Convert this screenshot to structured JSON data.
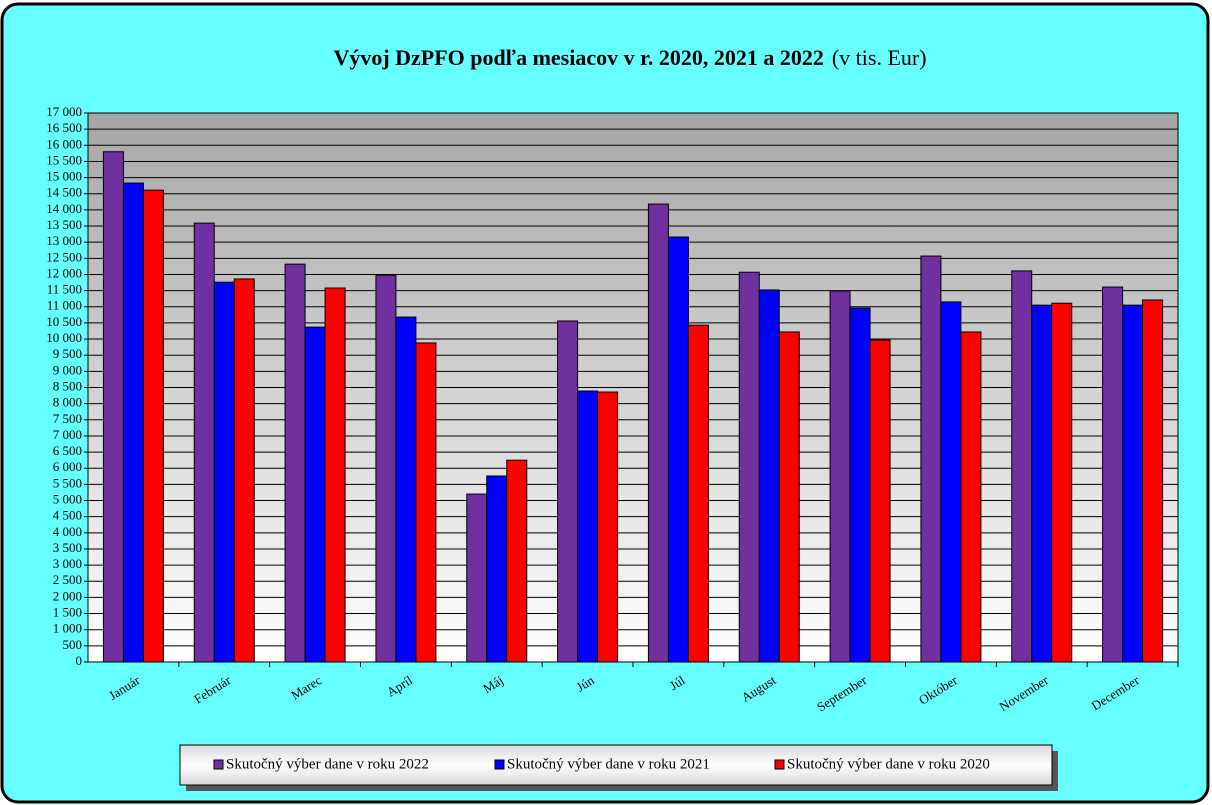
{
  "chart_data": {
    "type": "bar",
    "title": "Vývoj DzPFO podľa mesiacov v r. 2020, 2021 a  2022",
    "subtitle": "(v tis. Eur)",
    "categories": [
      "Január",
      "Február",
      "Marec",
      "Apríl",
      "Máj",
      "Jún",
      "Júl",
      "August",
      "September",
      "Október",
      "November",
      "December"
    ],
    "series": [
      {
        "name": "Skutočný výber dane v roku 2022",
        "color": "#7030a0",
        "values": [
          15800,
          13590,
          12320,
          11980,
          5200,
          10560,
          14180,
          12070,
          11490,
          12570,
          12110,
          11610
        ]
      },
      {
        "name": "Skutočný výber dane v roku 2021",
        "color": "#0000ff",
        "values": [
          14830,
          11760,
          10370,
          10680,
          5760,
          8390,
          13160,
          11520,
          10960,
          11150,
          11050,
          11050
        ]
      },
      {
        "name": "Skutočný výber dane v roku 2020",
        "color": "#ff0000",
        "values": [
          14610,
          11860,
          11580,
          9880,
          6250,
          8360,
          10430,
          10220,
          9970,
          10220,
          11110,
          11210
        ]
      }
    ],
    "ylim": [
      0,
      17000
    ],
    "yticks": [
      0,
      500,
      {
        "value": 1000,
        "label": "1 000"
      },
      {
        "value": 1500,
        "label": "1 500"
      },
      {
        "value": 2000,
        "label": "2 000"
      },
      {
        "value": 2500,
        "label": "2 500"
      },
      {
        "value": 3000,
        "label": "3 000"
      },
      {
        "value": 3500,
        "label": "3 500"
      },
      {
        "value": 4000,
        "label": "4 000"
      },
      {
        "value": 4500,
        "label": "4 500"
      },
      {
        "value": 5000,
        "label": "5 000"
      },
      {
        "value": 5500,
        "label": "5 500"
      },
      {
        "value": 6000,
        "label": "6 000"
      },
      {
        "value": 6500,
        "label": "6 500"
      },
      {
        "value": 7000,
        "label": "7 000"
      },
      {
        "value": 7500,
        "label": "7 500"
      },
      {
        "value": 8000,
        "label": "8 000"
      },
      {
        "value": 8500,
        "label": "8 500"
      },
      {
        "value": 9000,
        "label": "9 000"
      },
      {
        "value": 9500,
        "label": "9 500"
      },
      {
        "value": 10000,
        "label": "10 000"
      },
      {
        "value": 10500,
        "label": "10 500"
      },
      {
        "value": 11000,
        "label": "11 000"
      },
      {
        "value": 11500,
        "label": "11 500"
      },
      {
        "value": 12000,
        "label": "12 000"
      },
      {
        "value": 12500,
        "label": "12 500"
      },
      {
        "value": 13000,
        "label": "13 000"
      },
      {
        "value": 13500,
        "label": "13 500"
      },
      {
        "value": 14000,
        "label": "14 000"
      },
      {
        "value": 14500,
        "label": "14 500"
      },
      {
        "value": 15000,
        "label": "15 000"
      },
      {
        "value": 15500,
        "label": "15 500"
      },
      {
        "value": 16000,
        "label": "16 000"
      },
      {
        "value": 16500,
        "label": "16 500"
      },
      {
        "value": 17000,
        "label": "17 000"
      }
    ],
    "grid": true
  }
}
